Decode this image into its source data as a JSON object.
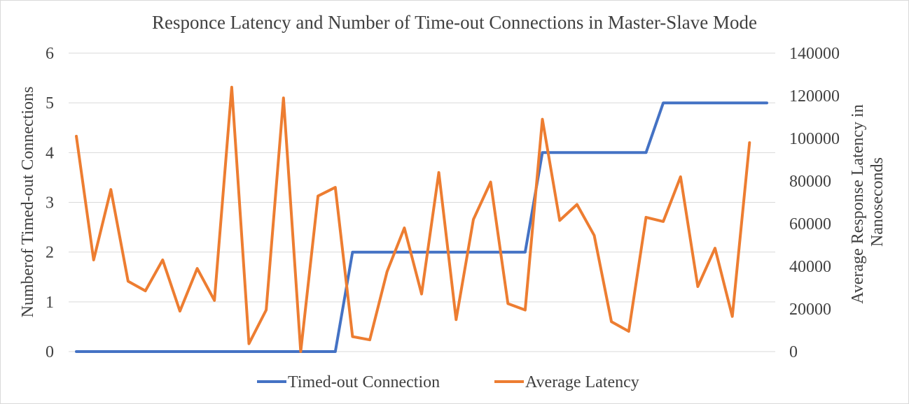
{
  "chart_data": {
    "type": "line",
    "title": "Responce Latency and Number of Time-out Connections in Master-Slave Mode",
    "ylabel_left": "Numberof Timed-out Connections",
    "ylabel_right": "Average Response Latency in Nanoseconds",
    "ylim_left": [
      0,
      6
    ],
    "ylim_right": [
      0,
      140000
    ],
    "yticks_left": [
      "0",
      "1",
      "2",
      "3",
      "4",
      "5",
      "6"
    ],
    "yticks_right": [
      "0",
      "20000",
      "40000",
      "60000",
      "80000",
      "100000",
      "120000",
      "140000"
    ],
    "grid": true,
    "legend_position": "bottom",
    "series": [
      {
        "name": "Timed-out Connection",
        "axis": "left",
        "color": "#4472C4",
        "values": [
          0,
          0,
          0,
          0,
          0,
          0,
          0,
          0,
          0,
          0,
          0,
          0,
          0,
          0,
          0,
          0,
          2,
          2,
          2,
          2,
          2,
          2,
          2,
          2,
          2,
          2,
          2,
          4,
          4,
          4,
          4,
          4,
          4,
          4,
          5,
          5,
          5,
          5,
          5,
          5,
          5
        ]
      },
      {
        "name": "Average Latency",
        "axis": "right",
        "color": "#ED7D31",
        "values": [
          101000,
          43000,
          76000,
          33000,
          28500,
          43000,
          19000,
          39000,
          24000,
          124000,
          3700,
          19500,
          119000,
          0,
          73000,
          77000,
          7000,
          5500,
          37500,
          58000,
          27000,
          84000,
          15000,
          62000,
          79500,
          22500,
          19500,
          109000,
          61500,
          69000,
          54500,
          14000,
          9500,
          63000,
          61000,
          82000,
          30500,
          48500,
          16500,
          98000,
          null
        ]
      }
    ]
  }
}
